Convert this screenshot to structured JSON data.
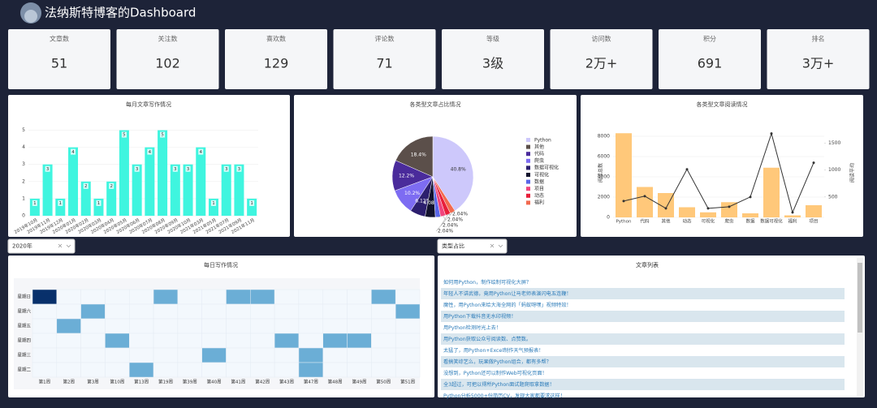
{
  "header": {
    "title": "法纳斯特博客的Dashboard"
  },
  "cards": [
    {
      "label": "文章数",
      "value": "51"
    },
    {
      "label": "关注数",
      "value": "102"
    },
    {
      "label": "喜欢数",
      "value": "129"
    },
    {
      "label": "评论数",
      "value": "71"
    },
    {
      "label": "等级",
      "value": "3级"
    },
    {
      "label": "访问数",
      "value": "2万+"
    },
    {
      "label": "积分",
      "value": "691"
    },
    {
      "label": "排名",
      "value": "3万+"
    }
  ],
  "chart_data": [
    {
      "type": "bar",
      "title": "每月文章写作情况",
      "categories": [
        "2019年10月",
        "2019年11月",
        "2019年12月",
        "2020年01月",
        "2020年02月",
        "2020年03月",
        "2020年04月",
        "2020年05月",
        "2020年06月",
        "2020年07月",
        "2020年08月",
        "2020年09月",
        "2020年10月",
        "2021年03月",
        "2021年05月",
        "2021年07月",
        "2021年09月",
        "2021年11月"
      ],
      "values": [
        1,
        3,
        1,
        4,
        2,
        1,
        2,
        5,
        3,
        4,
        5,
        3,
        3,
        4,
        1,
        3,
        3,
        1
      ],
      "color": "#3ff5df",
      "ylim": [
        0,
        5.5
      ],
      "yticks": [
        0,
        1,
        2,
        3,
        4,
        5
      ],
      "grid": true
    },
    {
      "type": "pie",
      "title": "各类型文章占比情况",
      "categories": [
        "Python",
        "其他",
        "代码",
        "爬虫",
        "数据可视化",
        "可视化",
        "数据",
        "项目",
        "动态",
        "福利"
      ],
      "values": [
        40.8,
        18.4,
        12.2,
        10.2,
        6.12,
        4.08,
        2.04,
        2.04,
        2.04,
        2.04
      ],
      "value_labels": [
        "40.8%",
        "18.4%",
        "12.2%",
        "10.2%",
        "6.12%",
        "4.08%",
        "2.04%",
        "2.04%",
        "2.04%",
        "2.04%"
      ],
      "colors": [
        "#cdc8fb",
        "#5b4f4a",
        "#4a2b9b",
        "#7d6cf2",
        "#2c1f6e",
        "#12122e",
        "#5966e8",
        "#f0457d",
        "#e81f3a",
        "#f26a4f"
      ]
    },
    {
      "type": "combo",
      "title": "各类型文章阅读情况",
      "categories": [
        "Python",
        "代码",
        "其他",
        "动态",
        "可视化",
        "爬虫",
        "数据",
        "数据可视化",
        "福利",
        "项目"
      ],
      "series": [
        {
          "name": "阅读总数",
          "color": "#ffc87a",
          "values": [
            8300,
            3000,
            2400,
            1000,
            500,
            1500,
            400,
            4900,
            200,
            1200
          ]
        },
        {
          "name": "阅读平均",
          "color": "#333333",
          "axis": "y2",
          "values": [
            424,
            515,
            288,
            1015,
            288,
            318,
            500,
            1680,
            212,
            1136
          ]
        }
      ],
      "ylabel": "阅读总数",
      "y2label": "阅读平均",
      "ylim": [
        0,
        8800
      ],
      "yticks": [
        0,
        2000,
        4000,
        6000,
        8000
      ],
      "y2lim": [
        120,
        1780
      ],
      "y2ticks": [
        500,
        1000,
        1500
      ],
      "grid": true
    },
    {
      "type": "heatmap",
      "title": "每日写作情况",
      "x": [
        "第1周",
        "第2周",
        "第3周",
        "第10周",
        "第13周",
        "第19周",
        "第39周",
        "第40周",
        "第41周",
        "第42周",
        "第43周",
        "第47周",
        "第48周",
        "第49周",
        "第50周",
        "第51周"
      ],
      "y": [
        "星期日",
        "星期六",
        "星期五",
        "星期四",
        "星期三",
        "星期二"
      ],
      "z": [
        [
          2,
          0,
          0,
          0,
          0,
          1,
          0,
          0,
          1,
          1,
          0,
          0,
          0,
          0,
          1,
          0
        ],
        [
          0,
          0,
          1,
          0,
          0,
          0,
          0,
          0,
          0,
          0,
          0,
          0,
          0,
          0,
          0,
          1
        ],
        [
          0,
          1,
          0,
          0,
          0,
          0,
          0,
          0,
          0,
          0,
          0,
          0,
          0,
          0,
          0,
          0
        ],
        [
          0,
          0,
          0,
          1,
          0,
          0,
          0,
          0,
          0,
          0,
          1,
          0,
          1,
          1,
          0,
          0
        ],
        [
          0,
          0,
          0,
          0,
          0,
          0,
          0,
          1,
          0,
          0,
          0,
          1,
          0,
          0,
          0,
          0
        ],
        [
          0,
          0,
          0,
          0,
          1,
          0,
          0,
          0,
          0,
          0,
          0,
          1,
          0,
          0,
          0,
          0
        ]
      ],
      "colors": [
        "#f3f8fd",
        "#6baed6",
        "#08306b"
      ]
    }
  ],
  "dropdowns": [
    "2020年",
    "类型占比"
  ],
  "table": {
    "title": "文章列表",
    "rows": [
      "如何用Python，制作绘制可视化大屏？",
      "年轻人不讲武德，竟用Python让马老师表演闪电五连鞭！",
      "魔性，用Python来给大海全网的「蚂蚁呀嘿」视频特效！",
      "用Python下载抖音无水印视频！",
      "用Python检测时光上去！",
      "用Python获取公众号阅读数、点赞数。",
      "太猛了，用Python+Excel制作天气预报表！",
      "看搞笑综艺么，玩果做Python组合，都有多帮？",
      "没想到，Python还可以制作Web可视化页面！",
      "全3超过，可把以得所Python面试题爬取拿数据！",
      "Python分析5000+份简历CV，发现大家都要求这样！"
    ]
  }
}
